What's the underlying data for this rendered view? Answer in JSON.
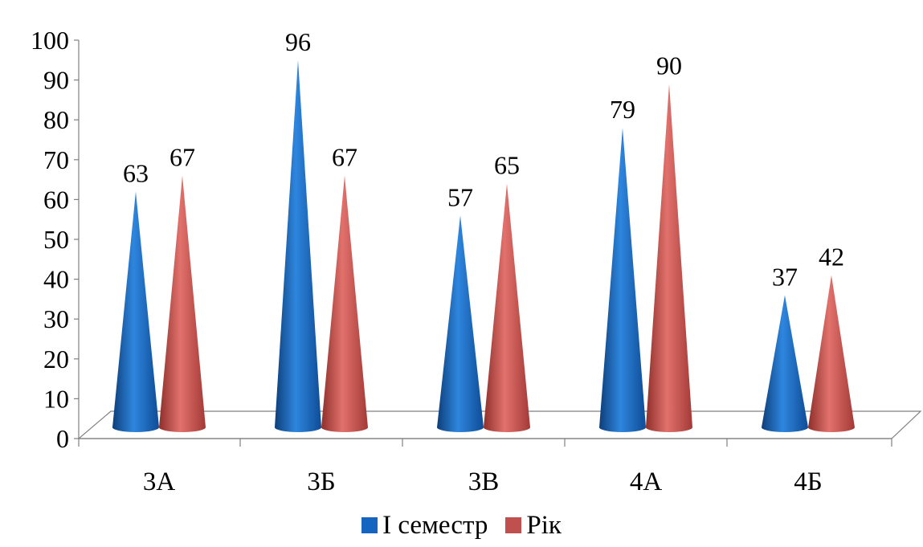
{
  "colors": {
    "series1": "#1565C0",
    "series2": "#C0504D"
  },
  "chart_data": {
    "type": "bar",
    "bar_shape": "cone",
    "categories": [
      "3А",
      "3Б",
      "3В",
      "4А",
      "4Б"
    ],
    "series": [
      {
        "name": "І семестр",
        "values": [
          63,
          96,
          57,
          79,
          37
        ]
      },
      {
        "name": "Рік",
        "values": [
          67,
          67,
          65,
          90,
          42
        ]
      }
    ],
    "ylim": [
      0,
      100
    ],
    "yticks": [
      "0",
      "10",
      "20",
      "30",
      "40",
      "50",
      "60",
      "70",
      "80",
      "90",
      "100"
    ],
    "data_labels": true,
    "legend": "bottom"
  }
}
